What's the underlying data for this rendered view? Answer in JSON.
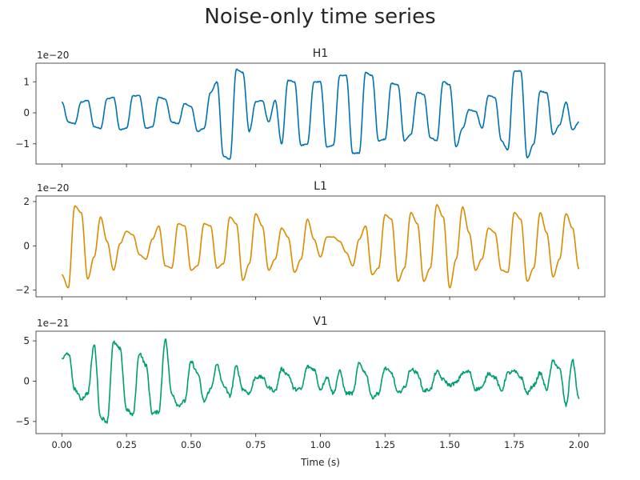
{
  "figure": {
    "title": "Noise-only time series"
  },
  "chart_data": [
    {
      "type": "line",
      "title": "H1",
      "xlabel": "",
      "ylabel": "",
      "offset_text": "1e−20",
      "xlim": [
        -0.1,
        2.1
      ],
      "ylim": [
        -1.65,
        1.6
      ],
      "xticks": [
        0.0,
        0.25,
        0.5,
        0.75,
        1.0,
        1.25,
        1.5,
        1.75,
        2.0
      ],
      "xtick_labels": [
        "0.00",
        "0.25",
        "0.50",
        "0.75",
        "1.00",
        "1.25",
        "1.50",
        "1.75",
        "2.00"
      ],
      "yticks": [
        -1,
        0,
        1
      ],
      "ytick_labels": [
        "−1",
        "0",
        "1"
      ],
      "x_tick_labels_visible": false,
      "color": "#0072b2",
      "noise": 0.03,
      "series": [
        {
          "x": [
            0.0,
            0.025,
            0.05,
            0.075,
            0.1,
            0.125,
            0.15,
            0.175,
            0.2,
            0.225,
            0.25,
            0.275,
            0.3,
            0.325,
            0.35,
            0.375,
            0.4,
            0.425,
            0.45,
            0.475,
            0.5,
            0.525,
            0.55,
            0.575,
            0.6,
            0.625,
            0.65,
            0.675,
            0.7,
            0.725,
            0.75,
            0.775,
            0.8,
            0.825,
            0.85,
            0.875,
            0.9,
            0.925,
            0.95,
            0.975,
            1.0,
            1.025,
            1.05,
            1.075,
            1.1,
            1.125,
            1.15,
            1.175,
            1.2,
            1.225,
            1.25,
            1.275,
            1.3,
            1.325,
            1.35,
            1.375,
            1.4,
            1.425,
            1.45,
            1.475,
            1.5,
            1.525,
            1.55,
            1.575,
            1.6,
            1.625,
            1.65,
            1.675,
            1.7,
            1.725,
            1.75,
            1.775,
            1.8,
            1.825,
            1.85,
            1.875,
            1.9,
            1.925,
            1.95,
            1.975,
            2.0
          ],
          "y": [
            0.35,
            -0.3,
            -0.35,
            0.35,
            0.4,
            -0.45,
            -0.5,
            0.45,
            0.5,
            -0.55,
            -0.5,
            0.55,
            0.55,
            -0.5,
            -0.45,
            0.5,
            0.45,
            -0.3,
            -0.35,
            0.3,
            0.2,
            -0.6,
            -0.5,
            0.65,
            1.0,
            -1.4,
            -1.5,
            1.4,
            1.3,
            -0.6,
            0.35,
            0.4,
            -0.3,
            0.4,
            -1.0,
            1.05,
            1.0,
            -1.05,
            -1.0,
            1.0,
            1.0,
            -1.1,
            -1.05,
            1.2,
            1.2,
            -1.3,
            -1.3,
            1.3,
            1.2,
            -0.9,
            -0.85,
            0.95,
            0.9,
            -0.9,
            -0.7,
            0.65,
            0.6,
            -0.8,
            -0.9,
            1.0,
            0.9,
            -1.1,
            -0.5,
            0.1,
            0.05,
            -0.5,
            0.55,
            0.5,
            -0.9,
            -1.2,
            1.35,
            1.35,
            -1.45,
            -1.0,
            0.7,
            0.65,
            -0.7,
            -0.4,
            0.35,
            -0.55,
            -0.3
          ]
        }
      ]
    },
    {
      "type": "line",
      "title": "L1",
      "xlabel": "",
      "ylabel": "",
      "offset_text": "1e−20",
      "xlim": [
        -0.1,
        2.1
      ],
      "ylim": [
        -2.3,
        2.25
      ],
      "xticks": [
        0.0,
        0.25,
        0.5,
        0.75,
        1.0,
        1.25,
        1.5,
        1.75,
        2.0
      ],
      "xtick_labels": [
        "0.00",
        "0.25",
        "0.50",
        "0.75",
        "1.00",
        "1.25",
        "1.50",
        "1.75",
        "2.00"
      ],
      "yticks": [
        -2,
        0,
        2
      ],
      "ytick_labels": [
        "−2",
        "0",
        "2"
      ],
      "x_tick_labels_visible": false,
      "color": "#d98c00",
      "noise": 0.02,
      "series": [
        {
          "x": [
            0.0,
            0.025,
            0.05,
            0.075,
            0.1,
            0.125,
            0.15,
            0.175,
            0.2,
            0.225,
            0.25,
            0.275,
            0.3,
            0.325,
            0.35,
            0.375,
            0.4,
            0.425,
            0.45,
            0.475,
            0.5,
            0.525,
            0.55,
            0.575,
            0.6,
            0.625,
            0.65,
            0.675,
            0.7,
            0.725,
            0.75,
            0.775,
            0.8,
            0.825,
            0.85,
            0.875,
            0.9,
            0.925,
            0.95,
            0.975,
            1.0,
            1.025,
            1.05,
            1.075,
            1.1,
            1.125,
            1.15,
            1.175,
            1.2,
            1.225,
            1.25,
            1.275,
            1.3,
            1.325,
            1.35,
            1.375,
            1.4,
            1.425,
            1.45,
            1.475,
            1.5,
            1.525,
            1.55,
            1.575,
            1.6,
            1.625,
            1.65,
            1.675,
            1.7,
            1.725,
            1.75,
            1.775,
            1.8,
            1.825,
            1.85,
            1.875,
            1.9,
            1.925,
            1.95,
            1.975,
            2.0
          ],
          "y": [
            -1.3,
            -1.9,
            1.8,
            1.5,
            -1.5,
            -0.5,
            1.3,
            0.2,
            -1.1,
            0.1,
            0.65,
            0.5,
            -0.4,
            -0.6,
            0.3,
            0.9,
            -0.9,
            -1.0,
            1.0,
            0.9,
            -1.1,
            -0.9,
            1.0,
            0.9,
            -1.0,
            -0.8,
            1.3,
            1.0,
            -1.55,
            -0.8,
            1.45,
            0.9,
            -1.1,
            -0.6,
            0.8,
            0.4,
            -1.2,
            -0.6,
            1.2,
            0.3,
            -0.5,
            0.4,
            0.4,
            0.2,
            -0.3,
            -0.9,
            0.3,
            0.9,
            -1.3,
            -1.0,
            1.4,
            1.2,
            -1.6,
            -1.0,
            1.5,
            1.0,
            -1.6,
            -1.0,
            1.85,
            1.3,
            -1.9,
            -0.6,
            1.75,
            0.6,
            -1.1,
            -0.6,
            0.8,
            0.6,
            -1.1,
            -1.2,
            1.5,
            1.2,
            -1.6,
            -1.0,
            1.5,
            0.6,
            -1.4,
            -0.6,
            1.45,
            0.8,
            -1.05
          ]
        }
      ]
    },
    {
      "type": "line",
      "title": "V1",
      "xlabel": "Time (s)",
      "ylabel": "",
      "offset_text": "1e−21",
      "xlim": [
        -0.1,
        2.1
      ],
      "ylim": [
        -6.5,
        6.2
      ],
      "xticks": [
        0.0,
        0.25,
        0.5,
        0.75,
        1.0,
        1.25,
        1.5,
        1.75,
        2.0
      ],
      "xtick_labels": [
        "0.00",
        "0.25",
        "0.50",
        "0.75",
        "1.00",
        "1.25",
        "1.50",
        "1.75",
        "2.00"
      ],
      "yticks": [
        -5,
        0,
        5
      ],
      "ytick_labels": [
        "−5",
        "0",
        "5"
      ],
      "x_tick_labels_visible": true,
      "color": "#009e73",
      "noise": 0.45,
      "series": [
        {
          "x": [
            0.0,
            0.025,
            0.05,
            0.075,
            0.1,
            0.125,
            0.15,
            0.175,
            0.2,
            0.225,
            0.25,
            0.275,
            0.3,
            0.325,
            0.35,
            0.375,
            0.4,
            0.425,
            0.45,
            0.475,
            0.5,
            0.525,
            0.55,
            0.575,
            0.6,
            0.625,
            0.65,
            0.675,
            0.7,
            0.725,
            0.75,
            0.775,
            0.8,
            0.825,
            0.85,
            0.875,
            0.9,
            0.925,
            0.95,
            0.975,
            1.0,
            1.025,
            1.05,
            1.075,
            1.1,
            1.125,
            1.15,
            1.175,
            1.2,
            1.225,
            1.25,
            1.275,
            1.3,
            1.325,
            1.35,
            1.375,
            1.4,
            1.425,
            1.45,
            1.475,
            1.5,
            1.525,
            1.55,
            1.575,
            1.6,
            1.625,
            1.65,
            1.675,
            1.7,
            1.725,
            1.75,
            1.775,
            1.8,
            1.825,
            1.85,
            1.875,
            1.9,
            1.925,
            1.95,
            1.975,
            2.0
          ],
          "y": [
            2.8,
            3.5,
            -1.0,
            -2.2,
            -1.5,
            4.5,
            -4.5,
            -5.0,
            4.8,
            4.0,
            -3.5,
            -4.2,
            3.5,
            2.0,
            -4.0,
            -3.8,
            5.2,
            -1.5,
            -3.0,
            -2.5,
            2.4,
            1.0,
            -2.5,
            -1.0,
            2.0,
            -0.5,
            -1.8,
            1.8,
            -1.0,
            -1.5,
            0.5,
            0.5,
            -0.8,
            -1.2,
            1.5,
            0.8,
            -1.0,
            -1.0,
            1.8,
            1.5,
            -1.0,
            0.5,
            -1.5,
            1.2,
            -1.5,
            -1.5,
            2.2,
            1.0,
            -2.0,
            -1.5,
            1.6,
            1.0,
            -1.5,
            -0.8,
            1.5,
            1.0,
            -1.2,
            -1.0,
            1.2,
            0.2,
            -0.5,
            -0.2,
            1.0,
            1.2,
            -1.0,
            -0.8,
            1.0,
            0.5,
            -1.2,
            1.0,
            1.2,
            0.5,
            -1.5,
            -0.5,
            1.0,
            -1.0,
            2.5,
            1.5,
            -3.0,
            2.6,
            -2.2
          ]
        }
      ]
    }
  ]
}
